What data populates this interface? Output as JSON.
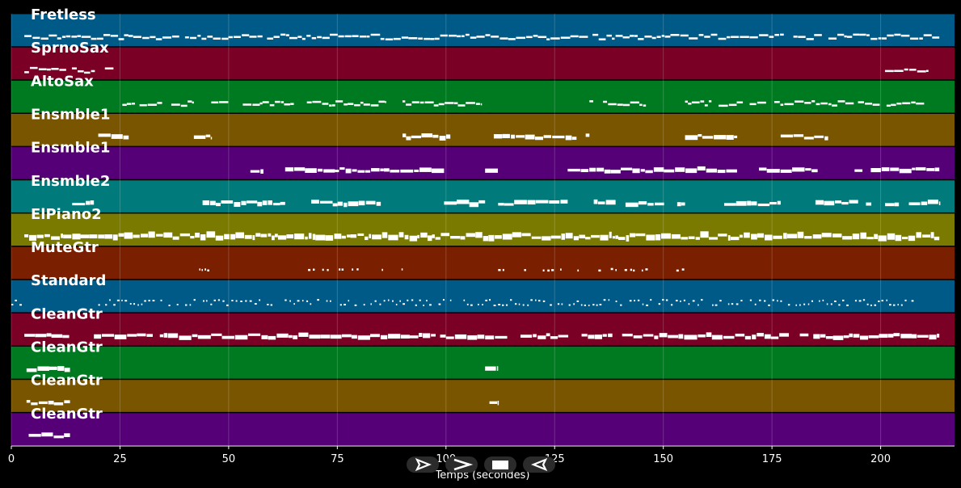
{
  "chart_data": {
    "type": "piano-roll",
    "title": "",
    "xlabel": "Temps (secondes)",
    "ylabel": "",
    "xlim": [
      0,
      217
    ],
    "xticks": [
      0,
      25,
      50,
      75,
      100,
      125,
      150,
      175,
      200
    ],
    "grid": true,
    "background": "#000000",
    "note_color": "#ffffff",
    "tracks": [
      {
        "name": "Fretless",
        "color": "#005a87",
        "active": [
          [
            3,
            213.5
          ]
        ],
        "density": 0.95,
        "style": "line"
      },
      {
        "name": "SprnoSax",
        "color": "#7a0026",
        "active": [
          [
            3,
            23.5
          ],
          [
            201,
            211
          ]
        ],
        "density": 0.9,
        "style": "line"
      },
      {
        "name": "AltoSax",
        "color": "#007a20",
        "active": [
          [
            24.5,
            42
          ],
          [
            46,
            65
          ],
          [
            68,
            86
          ],
          [
            90,
            108
          ],
          [
            133,
            146
          ],
          [
            155,
            210
          ]
        ],
        "density": 0.9,
        "style": "line"
      },
      {
        "name": "Ensmble1",
        "color": "#7a5500",
        "active": [
          [
            20,
            27
          ],
          [
            42,
            46
          ],
          [
            90,
            101
          ],
          [
            111,
            133
          ],
          [
            155,
            167
          ],
          [
            177,
            188
          ]
        ],
        "density": 0.9,
        "style": "block"
      },
      {
        "name": "Ensmble1",
        "color": "#560078",
        "active": [
          [
            55,
            58
          ],
          [
            63,
            101
          ],
          [
            109,
            112
          ],
          [
            128,
            167
          ],
          [
            172,
            188
          ],
          [
            194,
            213.5
          ]
        ],
        "density": 0.95,
        "style": "block"
      },
      {
        "name": "Ensmble2",
        "color": "#007a7a",
        "active": [
          [
            14,
            19
          ],
          [
            44,
            63
          ],
          [
            69,
            85
          ],
          [
            98,
            109
          ],
          [
            112,
            128
          ],
          [
            134,
            155
          ],
          [
            164,
            177
          ],
          [
            185,
            213.5
          ]
        ],
        "density": 0.9,
        "style": "block"
      },
      {
        "name": "ElPiano2",
        "color": "#7a7a00",
        "active": [
          [
            3,
            213.5
          ]
        ],
        "density": 1.0,
        "style": "dense"
      },
      {
        "name": "MuteGtr",
        "color": "#7a2000",
        "active": [
          [
            42,
            47
          ],
          [
            67,
            90
          ],
          [
            112,
            131
          ],
          [
            132,
            152
          ],
          [
            153,
            155
          ]
        ],
        "density": 0.45,
        "style": "sparse"
      },
      {
        "name": "Standard",
        "color": "#005a87",
        "active": [
          [
            0,
            3
          ],
          [
            20,
            195
          ],
          [
            195,
            208
          ]
        ],
        "density": 0.85,
        "style": "drums"
      },
      {
        "name": "CleanGtr",
        "color": "#7a0026",
        "active": [
          [
            3,
            14
          ],
          [
            19,
            213.5
          ]
        ],
        "density": 0.95,
        "style": "block"
      },
      {
        "name": "CleanGtr",
        "color": "#007a20",
        "active": [
          [
            3.5,
            13.5
          ],
          [
            109,
            112
          ]
        ],
        "density": 1.0,
        "style": "block"
      },
      {
        "name": "CleanGtr",
        "color": "#7a5500",
        "active": [
          [
            3.5,
            13.5
          ],
          [
            110,
            112
          ]
        ],
        "density": 1.0,
        "style": "block"
      },
      {
        "name": "CleanGtr",
        "color": "#560078",
        "active": [
          [
            4,
            13.5
          ]
        ],
        "density": 1.0,
        "style": "block"
      }
    ]
  },
  "controls": [
    {
      "name": "play-forward-button",
      "icon": "play-right-icon"
    },
    {
      "name": "fast-forward-button",
      "icon": "chevron-right-icon"
    },
    {
      "name": "stop-button",
      "icon": "stop-icon"
    },
    {
      "name": "play-backward-button",
      "icon": "play-left-icon"
    }
  ]
}
